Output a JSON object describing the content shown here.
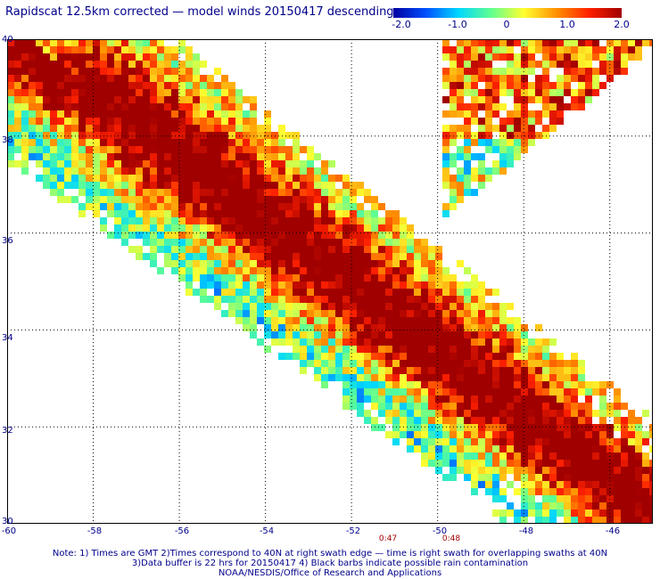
{
  "title": "Rapidscat 12.5km corrected — model winds 20150417 descending",
  "colorbar": {
    "ticks": [
      "-2.0",
      "-1.0",
      "0",
      "1.0",
      "2.0"
    ],
    "colors": [
      "#0000a0",
      "#0050ff",
      "#00d8ff",
      "#60ff90",
      "#ffff30",
      "#ff9000",
      "#ff2000",
      "#a00000"
    ]
  },
  "map": {
    "lon_range": [
      -60,
      -45
    ],
    "lat_range": [
      30,
      40
    ],
    "lon_labels": [
      "-60",
      "-58",
      "-56",
      "-54",
      "-52",
      "-50",
      "-48",
      "-46"
    ],
    "lat_labels": [
      "40",
      "38",
      "36",
      "34",
      "32",
      "30"
    ],
    "grid": "dotted"
  },
  "swath_times": [
    "0:47",
    "0:48"
  ],
  "notes": [
    "Note: 1) Times are GMT 2)Times correspond to 40N at right swath edge — time is right swath for overlapping swaths at 40N",
    "3)Data buffer is 22 hrs for 20150417 4) Black barbs indicate possible rain contamination",
    "NOAA/NESDIS/Office of Research and Applications"
  ]
}
